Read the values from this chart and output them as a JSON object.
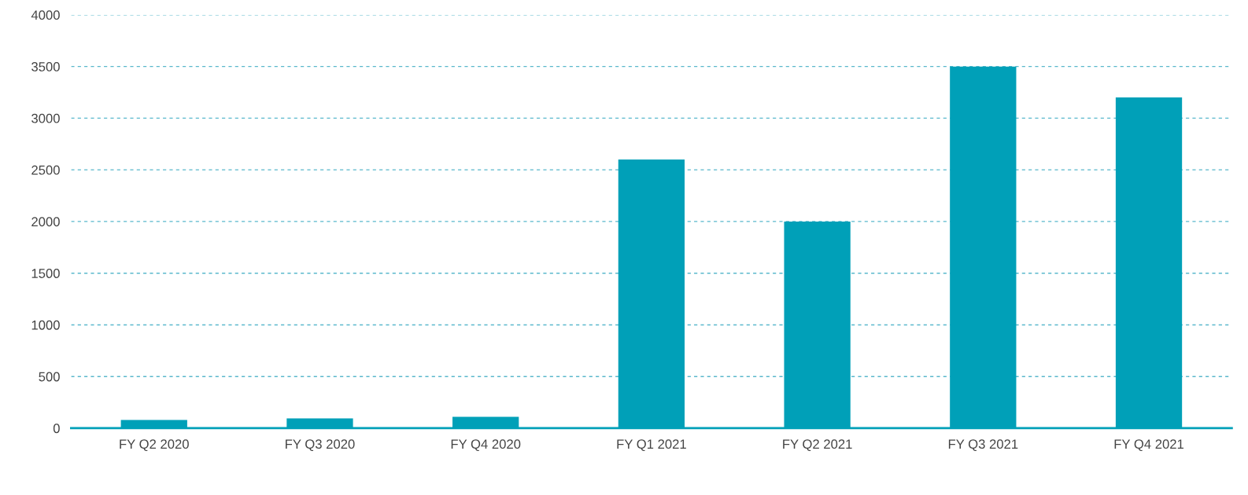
{
  "chart_data": {
    "type": "bar",
    "categories": [
      "FY Q2 2020",
      "FY Q3 2020",
      "FY Q4 2020",
      "FY Q1 2021",
      "FY Q2 2021",
      "FY Q3 2021",
      "FY Q4 2021"
    ],
    "values": [
      80,
      95,
      110,
      2600,
      2000,
      3500,
      3200
    ],
    "color": "#00a0b8",
    "ylim": [
      0,
      4000
    ],
    "yticks": [
      0,
      500,
      1000,
      1500,
      2000,
      2500,
      3000,
      3500,
      4000
    ],
    "grid": "y"
  }
}
